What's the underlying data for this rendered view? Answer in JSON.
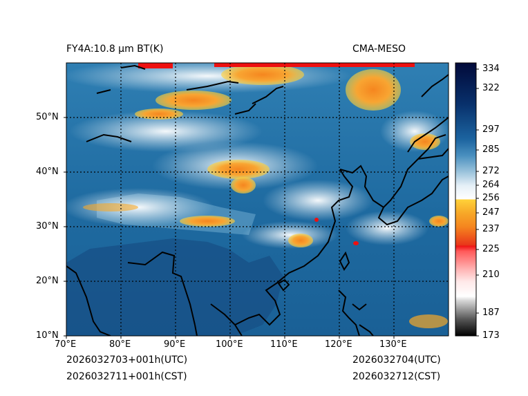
{
  "title_left": "FY4A:10.8 µm BT(K)",
  "title_right": "CMA-MESO",
  "footer": {
    "utc_left": "2026032703+001h(UTC)",
    "cst_left": "2026032711+001h(CST)",
    "utc_right": "2026032704(UTC)",
    "cst_right": "2026032712(CST)"
  },
  "map": {
    "lon_labels": [
      "70°E",
      "80°E",
      "90°E",
      "100°E",
      "110°E",
      "120°E",
      "130°E"
    ],
    "lat_labels": [
      "50°N",
      "40°N",
      "30°N",
      "20°N",
      "10°N"
    ],
    "lon_range": [
      70,
      140
    ],
    "lat_range": [
      10,
      60
    ]
  },
  "colorbar": {
    "range": [
      173,
      336
    ],
    "ticks": [
      "334",
      "322",
      "297",
      "285",
      "272",
      "264",
      "256",
      "247",
      "237",
      "225",
      "210",
      "187",
      "173"
    ],
    "colors": {
      "dark_navy": "#020a3a",
      "navy": "#08306b",
      "blue": "#1c64a0",
      "light_blue": "#6fa8c8",
      "white": "#ffffff",
      "yellow": "#ffd23a",
      "orange": "#f5861f",
      "red": "#ee1010",
      "pink": "#ffb8b8",
      "black": "#000000"
    }
  }
}
